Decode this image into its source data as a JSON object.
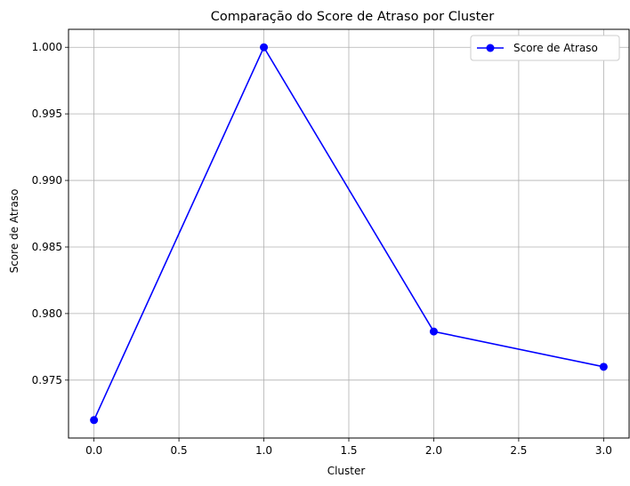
{
  "chart_data": {
    "type": "line",
    "title": "Comparação do Score de Atraso por Cluster",
    "xlabel": "Cluster",
    "ylabel": "Score de Atraso",
    "x": [
      0,
      1,
      2,
      3
    ],
    "series": [
      {
        "name": "Score de Atraso",
        "values": [
          0.972,
          1.0,
          0.97865,
          0.976
        ],
        "color": "#0000ff",
        "marker": "circle"
      }
    ],
    "xlim": [
      -0.15,
      3.15
    ],
    "ylim": [
      0.97065,
      1.00135
    ],
    "xticks": [
      0.0,
      0.5,
      1.0,
      1.5,
      2.0,
      2.5,
      3.0
    ],
    "xtick_labels": [
      "0.0",
      "0.5",
      "1.0",
      "1.5",
      "2.0",
      "2.5",
      "3.0"
    ],
    "yticks": [
      0.975,
      0.98,
      0.985,
      0.99,
      0.995,
      1.0
    ],
    "ytick_labels": [
      "0.975",
      "0.980",
      "0.985",
      "0.990",
      "0.995",
      "1.000"
    ],
    "grid": true,
    "grid_color": "#b0b0b0",
    "legend_position": "top-right"
  }
}
